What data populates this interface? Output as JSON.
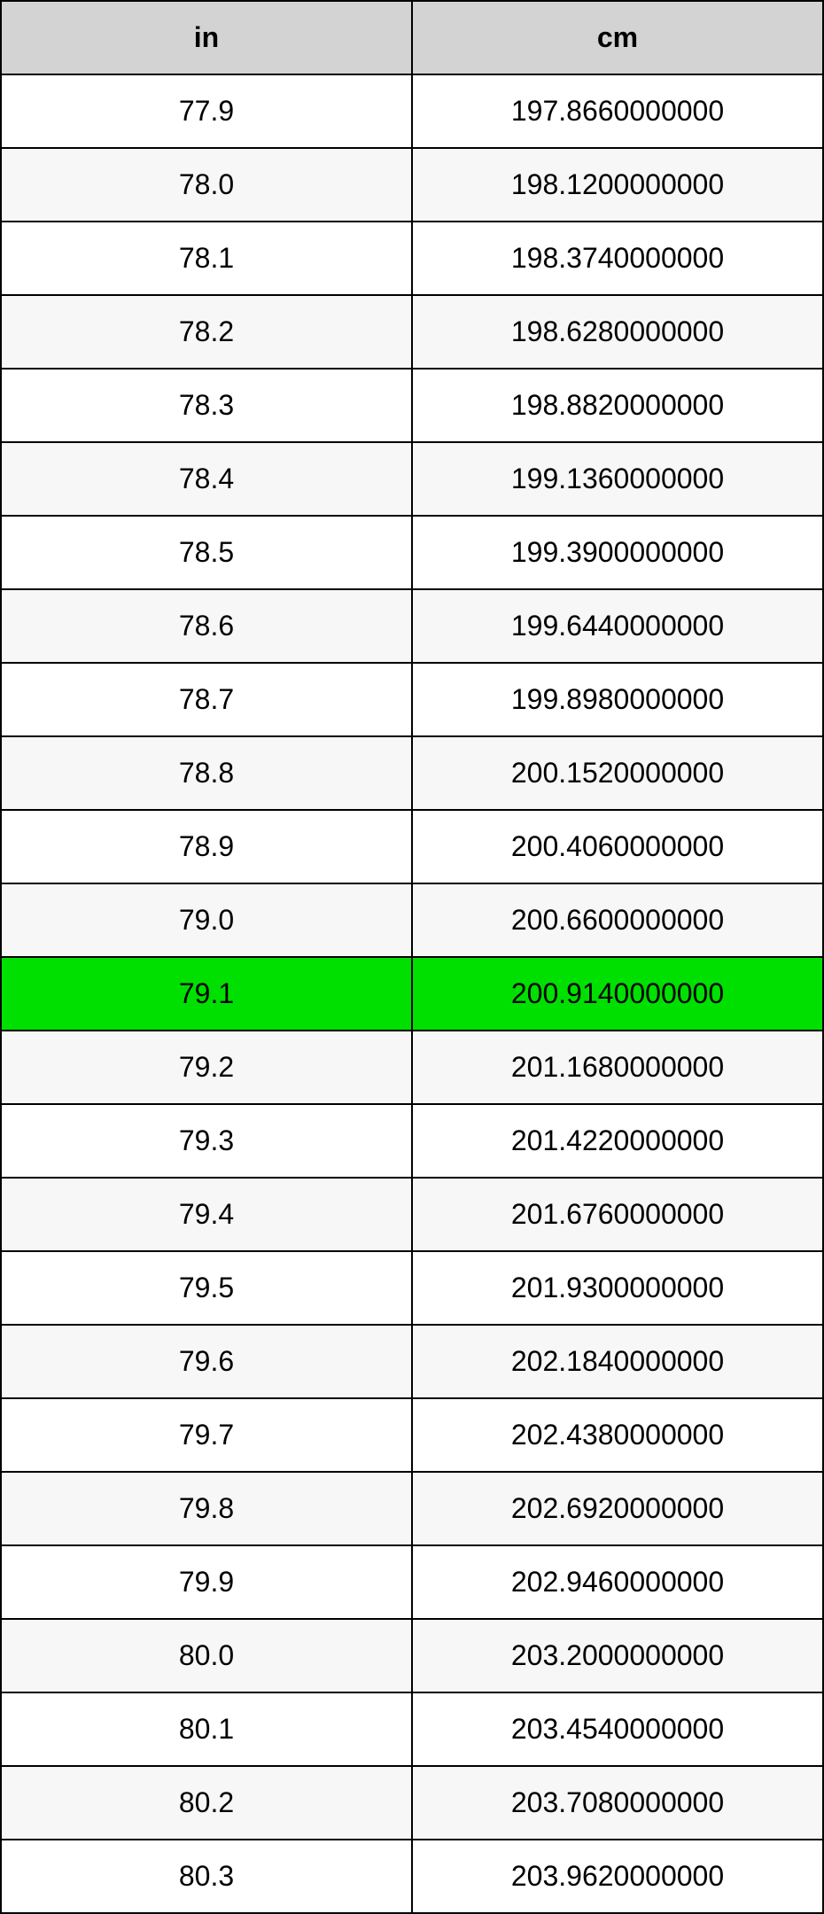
{
  "table": {
    "type": "table",
    "columns": [
      "in",
      "cm"
    ],
    "header_bg": "#d3d3d3",
    "header_text_color": "#000000",
    "header_fontsize": 32,
    "header_fontweight": "bold",
    "cell_fontsize": 32,
    "border_color": "#000000",
    "border_width": 2,
    "row_bg_odd": "#ffffff",
    "row_bg_even": "#f7f7f7",
    "highlight_bg": "#00e000",
    "highlight_index": 12,
    "column_widths": [
      "50%",
      "50%"
    ],
    "text_align": "center",
    "rows": [
      [
        "77.9",
        "197.8660000000"
      ],
      [
        "78.0",
        "198.1200000000"
      ],
      [
        "78.1",
        "198.3740000000"
      ],
      [
        "78.2",
        "198.6280000000"
      ],
      [
        "78.3",
        "198.8820000000"
      ],
      [
        "78.4",
        "199.1360000000"
      ],
      [
        "78.5",
        "199.3900000000"
      ],
      [
        "78.6",
        "199.6440000000"
      ],
      [
        "78.7",
        "199.8980000000"
      ],
      [
        "78.8",
        "200.1520000000"
      ],
      [
        "78.9",
        "200.4060000000"
      ],
      [
        "79.0",
        "200.6600000000"
      ],
      [
        "79.1",
        "200.9140000000"
      ],
      [
        "79.2",
        "201.1680000000"
      ],
      [
        "79.3",
        "201.4220000000"
      ],
      [
        "79.4",
        "201.6760000000"
      ],
      [
        "79.5",
        "201.9300000000"
      ],
      [
        "79.6",
        "202.1840000000"
      ],
      [
        "79.7",
        "202.4380000000"
      ],
      [
        "79.8",
        "202.6920000000"
      ],
      [
        "79.9",
        "202.9460000000"
      ],
      [
        "80.0",
        "203.2000000000"
      ],
      [
        "80.1",
        "203.4540000000"
      ],
      [
        "80.2",
        "203.7080000000"
      ],
      [
        "80.3",
        "203.9620000000"
      ]
    ]
  }
}
